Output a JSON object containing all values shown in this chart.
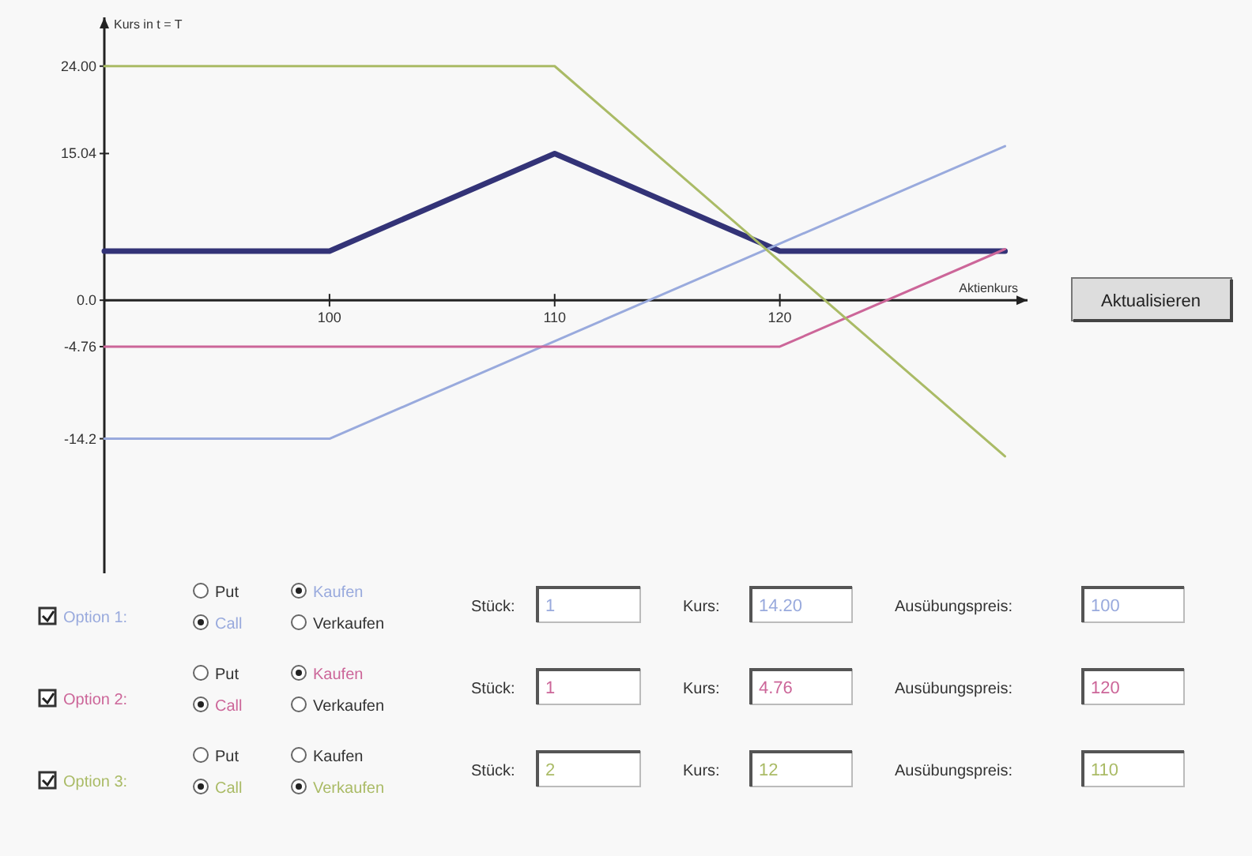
{
  "chart_data": {
    "type": "line",
    "xlabel": "Aktienkurs",
    "ylabel": "Kurs in t = T",
    "xlim": [
      90,
      131
    ],
    "ylim": [
      -28,
      29
    ],
    "xticks": [
      100,
      110,
      120
    ],
    "yticks": [
      {
        "value": 24,
        "label": "24.00"
      },
      15.04,
      {
        "value": 0,
        "label": "0.0"
      },
      -4.76,
      -14.2
    ],
    "series": [
      {
        "color": "#333377",
        "x": [
          90,
          100,
          110,
          120,
          130
        ],
        "values": [
          5.04,
          5.04,
          15.04,
          5.04,
          5.04
        ]
      },
      {
        "name": "Option 1:",
        "color": "#99aadd",
        "x": [
          90,
          100,
          130
        ],
        "values": [
          -14.2,
          -14.2,
          15.8
        ]
      },
      {
        "name": "Option 2:",
        "color": "#cc6699",
        "x": [
          90,
          120,
          130
        ],
        "values": [
          -4.76,
          -4.76,
          5.24
        ]
      },
      {
        "name": "Option 3:",
        "color": "#aabb66",
        "x": [
          90,
          110,
          130
        ],
        "values": [
          24,
          24,
          -16
        ]
      }
    ],
    "legend": "bottom",
    "marker": "none",
    "line_style": "solid",
    "grid": false,
    "annotations": [
      "Put",
      "Kaufen",
      "Call",
      "Verkaufen",
      "Stück:",
      "1",
      "Kurs:",
      "14.20",
      "Ausübungspreis:",
      "100",
      "Put",
      "Kaufen",
      "Call",
      "Verkaufen",
      "Stück:",
      "1",
      "Kurs:",
      "4.76",
      "Ausübungspreis:",
      "120",
      "Put",
      "Kaufen",
      "Call",
      "Verkaufen",
      "Stück:",
      "2",
      "Kurs:",
      "12",
      "Ausübungspreis:",
      "110",
      "Aktualisieren"
    ]
  }
}
